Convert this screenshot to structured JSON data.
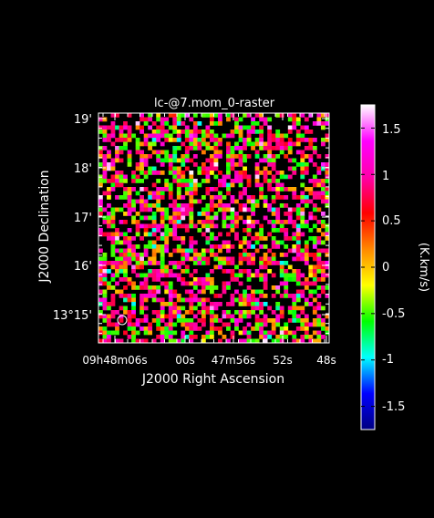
{
  "chart_data": {
    "type": "heatmap",
    "title": "lc-@7.mom_0-raster",
    "xlabel": "J2000 Right Ascension",
    "ylabel": "J2000 Declination",
    "x_tick_labels": [
      "09h48m06s",
      "00s",
      "47m56s",
      "52s",
      "48s"
    ],
    "y_tick_labels": [
      "19'",
      "18'",
      "17'",
      "16'",
      "13°15'"
    ],
    "colorbar": {
      "label": "(K.km/s)",
      "range": [
        -1.75,
        1.75
      ],
      "tick_labels": [
        "1.5",
        "1",
        "0.5",
        "0",
        "-0.5",
        "-1",
        "-1.5"
      ],
      "tick_values": [
        1.5,
        1.0,
        0.5,
        0.0,
        -0.5,
        -1.0,
        -1.5
      ],
      "colormap": [
        "#000080",
        "#0000ff",
        "#00ffff",
        "#00ff00",
        "#ffff00",
        "#ff8800",
        "#ff0000",
        "#ff00aa",
        "#ff00ff",
        "#ffffff"
      ]
    },
    "grid": {
      "columns": 56,
      "rows": 56,
      "clip_below": 0.0,
      "dominant_levels": [
        0.15,
        0.75,
        1.1,
        -0.5,
        0.9
      ],
      "seed": 7
    },
    "beam": "ellipse, lower-left corner"
  }
}
